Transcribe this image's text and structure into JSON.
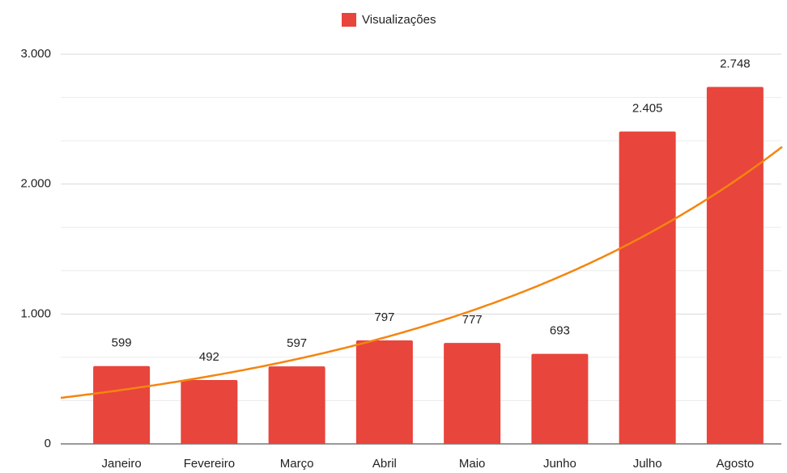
{
  "chart_data": {
    "type": "bar",
    "legend": "top",
    "series": [
      {
        "name": "Visualizações",
        "color": "#e8453c",
        "values": [
          599,
          492,
          597,
          797,
          777,
          693,
          2405,
          2748
        ],
        "value_labels": [
          "599",
          "492",
          "597",
          "797",
          "777",
          "693",
          "2.405",
          "2.748"
        ]
      }
    ],
    "categories": [
      "Janeiro",
      "Fevereiro",
      "Março",
      "Abril",
      "Maio",
      "Junho",
      "Julho",
      "Agosto"
    ],
    "ylim": [
      0,
      3000
    ],
    "yticks": [
      0,
      {
        "value": 1000,
        "label": "1.000"
      },
      {
        "value": 2000,
        "label": "2.000"
      },
      {
        "value": 3000,
        "label": "3.000"
      }
    ],
    "grid": true,
    "trendline": {
      "type": "exponential",
      "color": "#f5850f"
    }
  }
}
